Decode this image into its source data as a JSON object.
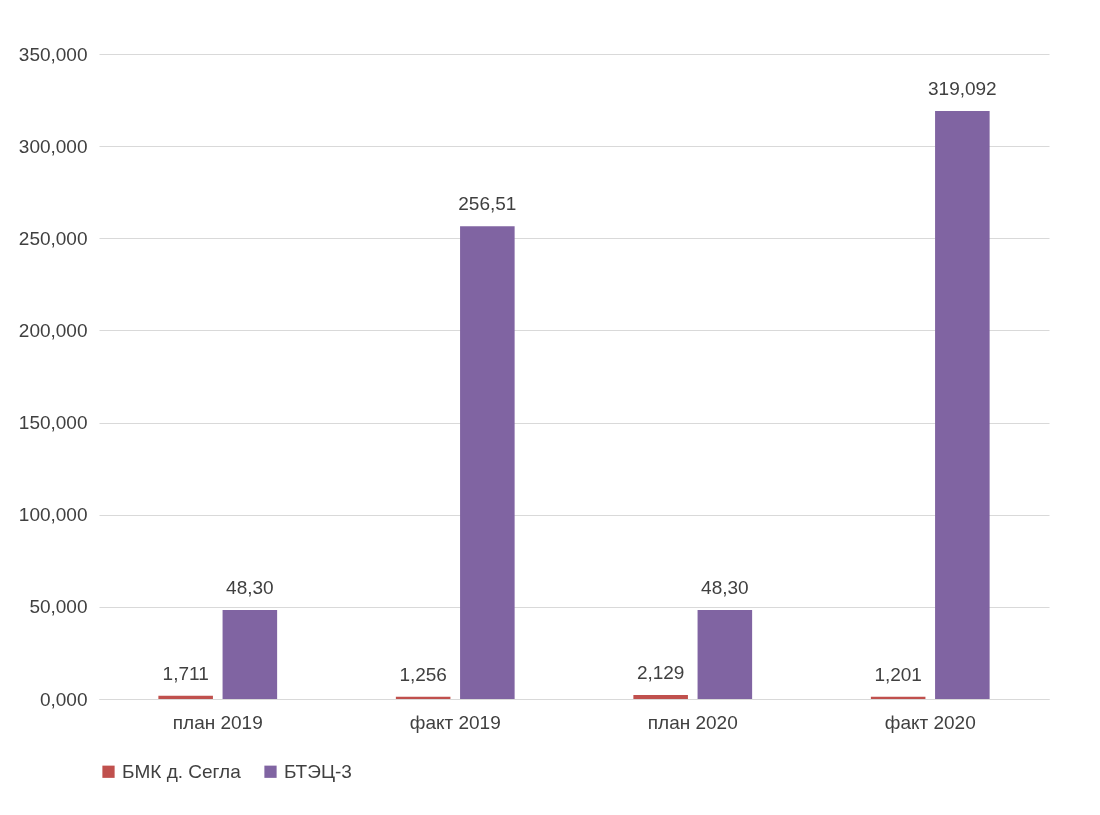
{
  "chart_data": {
    "type": "bar",
    "categories": [
      "план 2019",
      "факт 2019",
      "план 2020",
      "факт 2020"
    ],
    "series": [
      {
        "name": "БМК д. Сегла",
        "color": "#c0504d",
        "values": [
          1.711,
          1.256,
          2.129,
          1.201
        ],
        "value_labels": [
          "1,711",
          "1,256",
          "2,129",
          "1,201"
        ]
      },
      {
        "name": "БТЭЦ-3",
        "color": "#8064a2",
        "values": [
          48.3,
          256.51,
          48.3,
          319.092
        ],
        "value_labels": [
          "48,30",
          "256,51",
          "48,30",
          "319,092"
        ]
      }
    ],
    "ylim": [
      0,
      350
    ],
    "yticks": [
      {
        "value": 0,
        "label": "0,000"
      },
      {
        "value": 50,
        "label": "50,000"
      },
      {
        "value": 100,
        "label": "100,000"
      },
      {
        "value": 150,
        "label": "150,000"
      },
      {
        "value": 200,
        "label": "200,000"
      },
      {
        "value": 250,
        "label": "250,000"
      },
      {
        "value": 300,
        "label": "300,000"
      },
      {
        "value": 350,
        "label": "350,000"
      }
    ],
    "grid": "y",
    "legend": "bottom"
  }
}
